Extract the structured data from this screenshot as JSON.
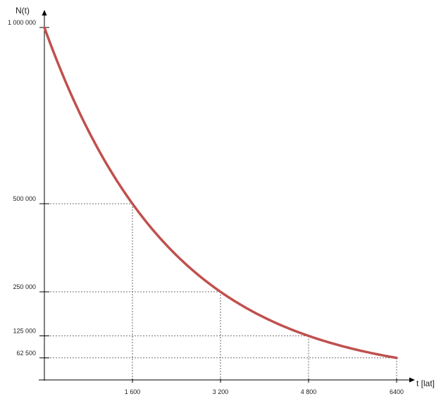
{
  "chart_data": {
    "type": "line",
    "title": "",
    "xlabel": "t [lat]",
    "ylabel": "N(t)",
    "xlim": [
      0,
      6400
    ],
    "ylim": [
      0,
      1000000
    ],
    "x_ticks": [
      {
        "value": 1600,
        "label": "1 600"
      },
      {
        "value": 3200,
        "label": "3 200"
      },
      {
        "value": 4800,
        "label": "4 800"
      },
      {
        "value": 6400,
        "label": "6400"
      }
    ],
    "y_ticks": [
      {
        "value": 1000000,
        "label": "1 000 000"
      },
      {
        "value": 500000,
        "label": "500 000"
      },
      {
        "value": 250000,
        "label": "250 000"
      },
      {
        "value": 125000,
        "label": "125 000"
      },
      {
        "value": 62500,
        "label": "62 500"
      }
    ],
    "series": [
      {
        "color": "#c0504d",
        "x": [
          0,
          1600,
          3200,
          4800,
          6400
        ],
        "y": [
          1000000,
          500000,
          250000,
          125000,
          62500
        ]
      }
    ],
    "guides": [
      {
        "x": 1600,
        "y": 500000
      },
      {
        "x": 3200,
        "y": 250000
      },
      {
        "x": 4800,
        "y": 125000
      },
      {
        "x": 6400,
        "y": 62500
      }
    ],
    "grid": false,
    "legend": "none",
    "colors": {
      "axis": "#000000",
      "curve": "#c0504d",
      "guide": "#444444"
    }
  }
}
